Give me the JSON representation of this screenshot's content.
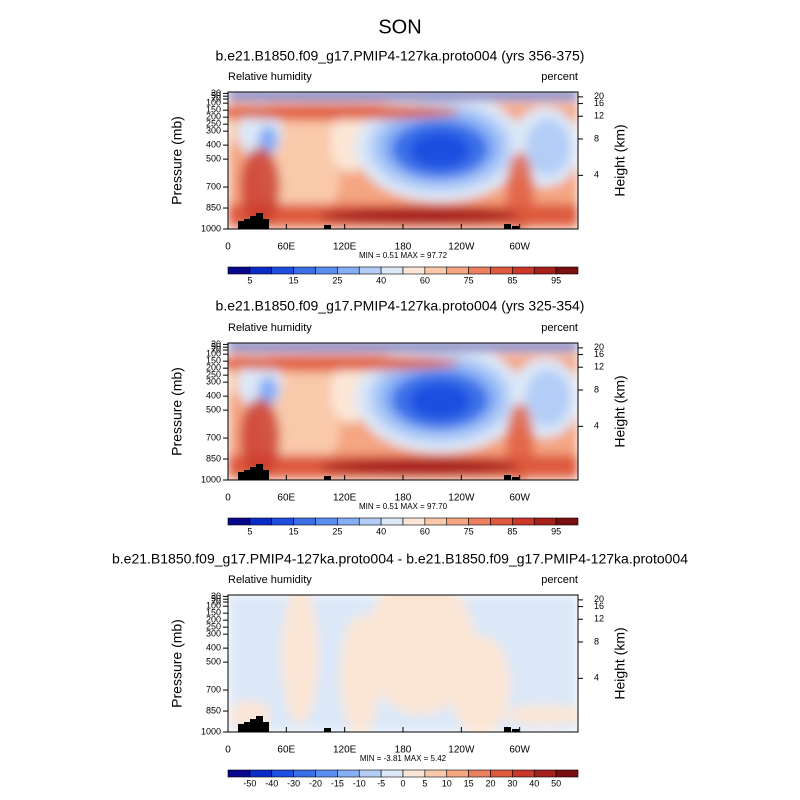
{
  "title": "SON",
  "chart_data": [
    {
      "type": "contour",
      "title": "b.e21.B1850.f09_g17.PMIP4-127ka.proto004 (yrs 356-375)",
      "left_label": "Relative humidity",
      "right_label": "percent",
      "ylabel": "Pressure (mb)",
      "y2label": "Height (km)",
      "xlim": [
        0,
        360
      ],
      "xticks": [
        0,
        {
          "value": 60,
          "label": "60E"
        },
        {
          "value": 120,
          "label": "120E"
        },
        180,
        {
          "value": 240,
          "label": "120W"
        },
        {
          "value": 300,
          "label": "60W"
        }
      ],
      "ylim": [
        1000,
        20
      ],
      "yticks": [
        1000,
        850,
        700,
        500,
        400,
        300,
        250,
        200,
        150,
        100,
        70,
        50,
        30
      ],
      "y2ticks": [
        4,
        8,
        12,
        16,
        20
      ],
      "stats": "MIN =   0.51   MAX =  97.72",
      "colorbar_labels": [
        5,
        15,
        25,
        40,
        60,
        75,
        85,
        95
      ],
      "colors": [
        "#08088c",
        "#0c2cc8",
        "#1f4fe0",
        "#3a6fe8",
        "#5a8ef0",
        "#86aef5",
        "#b3cdf7",
        "#dce8f8",
        "#fbe6d6",
        "#f9c9aa",
        "#f4a582",
        "#ec8060",
        "#de5a3e",
        "#c9382a",
        "#a51f1b",
        "#7a0f0f"
      ]
    },
    {
      "type": "contour",
      "title": "b.e21.B1850.f09_g17.PMIP4-127ka.proto004 (yrs 325-354)",
      "left_label": "Relative humidity",
      "right_label": "percent",
      "ylabel": "Pressure (mb)",
      "y2label": "Height (km)",
      "xlim": [
        0,
        360
      ],
      "xticks": [
        0,
        {
          "value": 60,
          "label": "60E"
        },
        {
          "value": 120,
          "label": "120E"
        },
        180,
        {
          "value": 240,
          "label": "120W"
        },
        {
          "value": 300,
          "label": "60W"
        }
      ],
      "ylim": [
        1000,
        20
      ],
      "yticks": [
        1000,
        850,
        700,
        500,
        400,
        300,
        250,
        200,
        150,
        100,
        70,
        50,
        30
      ],
      "y2ticks": [
        4,
        8,
        12,
        16,
        20
      ],
      "stats": "MIN =   0.51   MAX =  97.70",
      "colorbar_labels": [
        5,
        15,
        25,
        40,
        60,
        75,
        85,
        95
      ],
      "colors": [
        "#08088c",
        "#0c2cc8",
        "#1f4fe0",
        "#3a6fe8",
        "#5a8ef0",
        "#86aef5",
        "#b3cdf7",
        "#dce8f8",
        "#fbe6d6",
        "#f9c9aa",
        "#f4a582",
        "#ec8060",
        "#de5a3e",
        "#c9382a",
        "#a51f1b",
        "#7a0f0f"
      ]
    },
    {
      "type": "contour-diff",
      "title": "b.e21.B1850.f09_g17.PMIP4-127ka.proto004 - b.e21.B1850.f09_g17.PMIP4-127ka.proto004",
      "left_label": "Relative humidity",
      "right_label": "percent",
      "ylabel": "Pressure (mb)",
      "y2label": "Height (km)",
      "xlim": [
        0,
        360
      ],
      "xticks": [
        0,
        {
          "value": 60,
          "label": "60E"
        },
        {
          "value": 120,
          "label": "120E"
        },
        180,
        {
          "value": 240,
          "label": "120W"
        },
        {
          "value": 300,
          "label": "60W"
        }
      ],
      "ylim": [
        1000,
        20
      ],
      "yticks": [
        1000,
        850,
        700,
        500,
        400,
        300,
        250,
        200,
        150,
        100,
        70,
        50,
        30
      ],
      "y2ticks": [
        4,
        8,
        12,
        16,
        20
      ],
      "stats": "MIN =  -3.81   MAX =   5.42",
      "colorbar_labels": [
        -50,
        -40,
        -30,
        -20,
        -15,
        -10,
        -5,
        0,
        5,
        10,
        15,
        20,
        30,
        40,
        50
      ],
      "colors": [
        "#08088c",
        "#0c2cc8",
        "#1f4fe0",
        "#3a6fe8",
        "#5a8ef0",
        "#86aef5",
        "#b3cdf7",
        "#dce8f8",
        "#fbe6d6",
        "#f9c9aa",
        "#f4a582",
        "#ec8060",
        "#de5a3e",
        "#c9382a",
        "#a51f1b",
        "#7a0f0f"
      ]
    }
  ]
}
